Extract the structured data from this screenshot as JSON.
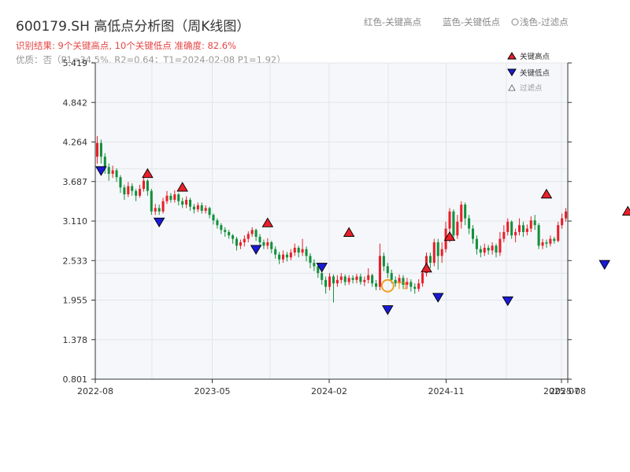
{
  "title": "600179.SH 高低点分析图（周K线图）",
  "info_line1": "识别结果: 9个关键高点, 10个关键低点   准确度: 82.6%",
  "info_line2": "优质：否（P1=34.5%, R2=0.64；T1=2024-02-08 P1=1.92）",
  "top_legend": {
    "red": "红色-关键高点",
    "blue": "蓝色-关键低点",
    "light": "浅色-过滤点"
  },
  "legend": {
    "high": "关键高点",
    "low": "关键低点",
    "filtered": "过滤点"
  },
  "colors": {
    "up": "#e8202a",
    "down": "#12903c",
    "high_marker": "#e8202a",
    "low_marker": "#1a1ad6",
    "t1": "#f0a020",
    "plot_bg": "#f5f7fa",
    "grid": "#e3e6ea"
  },
  "chart_data": {
    "type": "candlestick",
    "y_ticks": [
      "0.801",
      "1.378",
      "1.955",
      "2.533",
      "3.110",
      "3.687",
      "4.264",
      "4.842",
      "5.419"
    ],
    "ylim": [
      0.801,
      5.419
    ],
    "x_ticks": [
      "2022-08",
      "2023-05",
      "2024-02",
      "2024-11",
      "2025-07",
      "2025-08"
    ],
    "candles": [
      [
        4.05,
        4.25,
        4.35,
        3.95
      ],
      [
        4.25,
        4.05,
        4.3,
        3.95
      ],
      [
        4.05,
        3.9,
        4.1,
        3.8
      ],
      [
        3.9,
        3.8,
        3.95,
        3.7
      ],
      [
        3.8,
        3.85,
        3.92,
        3.74
      ],
      [
        3.85,
        3.75,
        3.88,
        3.68
      ],
      [
        3.75,
        3.6,
        3.78,
        3.52
      ],
      [
        3.6,
        3.5,
        3.64,
        3.42
      ],
      [
        3.5,
        3.62,
        3.68,
        3.46
      ],
      [
        3.62,
        3.55,
        3.66,
        3.48
      ],
      [
        3.55,
        3.48,
        3.58,
        3.4
      ],
      [
        3.48,
        3.58,
        3.64,
        3.45
      ],
      [
        3.58,
        3.7,
        3.74,
        3.54
      ],
      [
        3.7,
        3.55,
        3.72,
        3.48
      ],
      [
        3.55,
        3.25,
        3.58,
        3.2
      ],
      [
        3.25,
        3.3,
        3.36,
        3.2
      ],
      [
        3.3,
        3.25,
        3.35,
        3.2
      ],
      [
        3.25,
        3.4,
        3.45,
        3.22
      ],
      [
        3.4,
        3.48,
        3.55,
        3.36
      ],
      [
        3.48,
        3.42,
        3.52,
        3.38
      ],
      [
        3.42,
        3.5,
        3.56,
        3.38
      ],
      [
        3.5,
        3.4,
        3.52,
        3.34
      ],
      [
        3.4,
        3.35,
        3.45,
        3.3
      ],
      [
        3.35,
        3.42,
        3.47,
        3.3
      ],
      [
        3.42,
        3.32,
        3.45,
        3.26
      ],
      [
        3.32,
        3.28,
        3.36,
        3.22
      ],
      [
        3.28,
        3.34,
        3.38,
        3.24
      ],
      [
        3.34,
        3.26,
        3.38,
        3.22
      ],
      [
        3.26,
        3.3,
        3.34,
        3.22
      ],
      [
        3.3,
        3.2,
        3.32,
        3.15
      ],
      [
        3.2,
        3.12,
        3.22,
        3.06
      ],
      [
        3.12,
        3.05,
        3.15,
        3.0
      ],
      [
        3.05,
        2.98,
        3.08,
        2.92
      ],
      [
        2.98,
        2.95,
        3.02,
        2.88
      ],
      [
        2.95,
        2.9,
        2.98,
        2.85
      ],
      [
        2.9,
        2.85,
        2.92,
        2.78
      ],
      [
        2.85,
        2.75,
        2.88,
        2.68
      ],
      [
        2.75,
        2.8,
        2.84,
        2.7
      ],
      [
        2.8,
        2.85,
        2.9,
        2.74
      ],
      [
        2.85,
        2.92,
        2.96,
        2.8
      ],
      [
        2.92,
        2.98,
        3.02,
        2.88
      ],
      [
        2.98,
        2.88,
        3.0,
        2.82
      ],
      [
        2.88,
        2.8,
        2.92,
        2.74
      ],
      [
        2.8,
        2.75,
        2.84,
        2.7
      ],
      [
        2.75,
        2.8,
        2.86,
        2.7
      ],
      [
        2.8,
        2.7,
        2.82,
        2.64
      ],
      [
        2.7,
        2.62,
        2.74,
        2.56
      ],
      [
        2.62,
        2.55,
        2.66,
        2.48
      ],
      [
        2.55,
        2.62,
        2.68,
        2.5
      ],
      [
        2.62,
        2.58,
        2.66,
        2.52
      ],
      [
        2.58,
        2.65,
        2.7,
        2.54
      ],
      [
        2.65,
        2.72,
        2.78,
        2.6
      ],
      [
        2.72,
        2.65,
        2.75,
        2.58
      ],
      [
        2.65,
        2.7,
        2.85,
        2.6
      ],
      [
        2.7,
        2.6,
        2.74,
        2.52
      ],
      [
        2.6,
        2.5,
        2.64,
        2.42
      ],
      [
        2.5,
        2.45,
        2.55,
        2.38
      ],
      [
        2.45,
        2.35,
        2.48,
        2.28
      ],
      [
        2.35,
        2.25,
        2.4,
        2.18
      ],
      [
        2.25,
        2.15,
        2.3,
        2.05
      ],
      [
        2.15,
        2.3,
        2.35,
        2.1
      ],
      [
        2.3,
        2.2,
        2.33,
        1.92
      ],
      [
        2.2,
        2.25,
        2.32,
        2.15
      ],
      [
        2.25,
        2.3,
        2.35,
        2.2
      ],
      [
        2.3,
        2.22,
        2.33,
        2.17
      ],
      [
        2.22,
        2.28,
        2.32,
        2.18
      ],
      [
        2.28,
        2.25,
        2.32,
        2.2
      ],
      [
        2.25,
        2.3,
        2.34,
        2.2
      ],
      [
        2.3,
        2.22,
        2.34,
        2.18
      ],
      [
        2.22,
        2.25,
        2.3,
        2.16
      ],
      [
        2.25,
        2.32,
        2.42,
        2.2
      ],
      [
        2.32,
        2.2,
        2.34,
        2.15
      ],
      [
        2.2,
        2.15,
        2.25,
        2.1
      ],
      [
        2.15,
        2.6,
        2.78,
        2.1
      ],
      [
        2.6,
        2.45,
        2.65,
        2.38
      ],
      [
        2.45,
        2.35,
        2.5,
        2.28
      ],
      [
        2.35,
        2.25,
        2.4,
        2.2
      ],
      [
        2.25,
        2.2,
        2.3,
        2.15
      ],
      [
        2.2,
        2.28,
        2.33,
        2.16
      ],
      [
        2.28,
        2.18,
        2.32,
        2.12
      ],
      [
        2.18,
        2.22,
        2.28,
        2.12
      ],
      [
        2.22,
        2.15,
        2.26,
        2.08
      ],
      [
        2.15,
        2.12,
        2.2,
        2.05
      ],
      [
        2.12,
        2.2,
        2.26,
        2.08
      ],
      [
        2.2,
        2.35,
        2.4,
        2.15
      ],
      [
        2.35,
        2.6,
        2.65,
        2.3
      ],
      [
        2.6,
        2.5,
        2.65,
        2.42
      ],
      [
        2.5,
        2.8,
        2.85,
        2.45
      ],
      [
        2.8,
        2.6,
        2.85,
        2.4
      ],
      [
        2.6,
        2.7,
        2.8,
        2.5
      ],
      [
        2.7,
        3.0,
        3.1,
        2.65
      ],
      [
        3.0,
        3.25,
        3.3,
        2.8
      ],
      [
        3.25,
        2.9,
        3.28,
        2.85
      ],
      [
        2.9,
        3.1,
        3.2,
        2.85
      ],
      [
        3.1,
        3.35,
        3.4,
        3.0
      ],
      [
        3.35,
        3.15,
        3.38,
        3.05
      ],
      [
        3.15,
        3.0,
        3.2,
        2.92
      ],
      [
        3.0,
        2.85,
        3.05,
        2.78
      ],
      [
        2.85,
        2.7,
        2.9,
        2.62
      ],
      [
        2.7,
        2.65,
        2.75,
        2.58
      ],
      [
        2.65,
        2.72,
        2.78,
        2.6
      ],
      [
        2.72,
        2.68,
        2.76,
        2.62
      ],
      [
        2.68,
        2.75,
        2.8,
        2.62
      ],
      [
        2.75,
        2.65,
        2.78,
        2.58
      ],
      [
        2.65,
        2.85,
        2.95,
        2.6
      ],
      [
        2.85,
        2.95,
        3.05,
        2.8
      ],
      [
        2.95,
        3.1,
        3.15,
        2.9
      ],
      [
        3.1,
        2.9,
        3.12,
        2.85
      ],
      [
        2.9,
        2.95,
        3.0,
        2.8
      ],
      [
        2.95,
        3.05,
        3.15,
        2.9
      ],
      [
        3.05,
        2.95,
        3.1,
        2.88
      ],
      [
        2.95,
        3.0,
        3.06,
        2.9
      ],
      [
        3.0,
        3.12,
        3.18,
        2.95
      ],
      [
        3.12,
        3.05,
        3.2,
        2.98
      ],
      [
        3.05,
        2.75,
        3.08,
        2.7
      ],
      [
        2.75,
        2.8,
        2.85,
        2.7
      ],
      [
        2.8,
        2.78,
        2.84,
        2.72
      ],
      [
        2.78,
        2.85,
        2.9,
        2.74
      ],
      [
        2.85,
        2.82,
        2.88,
        2.78
      ],
      [
        2.82,
        3.05,
        3.1,
        2.8
      ],
      [
        3.05,
        3.15,
        3.22,
        3.0
      ],
      [
        3.15,
        3.25,
        3.3,
        3.1
      ]
    ],
    "key_highs": [
      {
        "i": 13,
        "v": 3.7
      },
      {
        "i": 22,
        "v": 3.5
      },
      {
        "i": 44,
        "v": 2.98
      },
      {
        "i": 65,
        "v": 2.84
      },
      {
        "i": 85,
        "v": 2.32
      },
      {
        "i": 91,
        "v": 2.78
      },
      {
        "i": 116,
        "v": 3.4
      },
      {
        "i": 137,
        "v": 3.15
      },
      {
        "i": 146,
        "v": 3.18
      }
    ],
    "key_lows": [
      {
        "i": 1,
        "v": 3.95
      },
      {
        "i": 16,
        "v": 3.2
      },
      {
        "i": 41,
        "v": 2.8
      },
      {
        "i": 58,
        "v": 2.54
      },
      {
        "i": 75,
        "v": 1.92
      },
      {
        "i": 88,
        "v": 2.1
      },
      {
        "i": 106,
        "v": 2.05
      },
      {
        "i": 131,
        "v": 2.58
      },
      {
        "i": 139,
        "v": 2.52
      },
      {
        "i": 148,
        "v": 2.7
      }
    ],
    "t1": {
      "i": 75,
      "label": "T1"
    }
  }
}
